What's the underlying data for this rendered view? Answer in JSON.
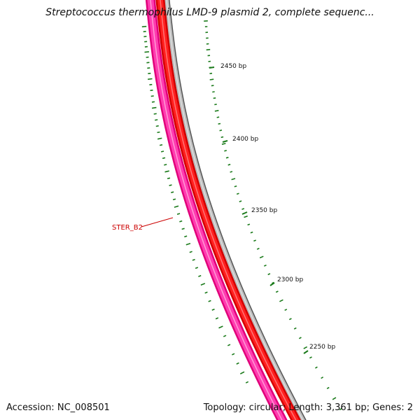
{
  "title": "Streptococcus thermophilus LMD-9 plasmid 2, complete sequenc...",
  "footer": {
    "accession_label": "Accession:",
    "accession_value": "NC_008501",
    "topology_label": "Topology:",
    "topology_value": "circular",
    "length_label": "Length:",
    "length_value": "3,361 bp",
    "genes_label": "Genes:",
    "genes_value": "2"
  },
  "scale_ticks": [
    {
      "bp": 2450,
      "label": "2450 bp"
    },
    {
      "bp": 2400,
      "label": "2400 bp"
    },
    {
      "bp": 2350,
      "label": "2350 bp"
    },
    {
      "bp": 2300,
      "label": "2300 bp"
    },
    {
      "bp": 2250,
      "label": "2250 bp"
    }
  ],
  "genes": [
    {
      "name": "STER_B2",
      "color": "#cc0000"
    }
  ],
  "colors": {
    "backbone": "#888888",
    "forward_feature": "#ff0000",
    "reverse_feature": "#ff1a9c",
    "ticks": "#1a7a1a",
    "gene_label": "#cc0000"
  }
}
